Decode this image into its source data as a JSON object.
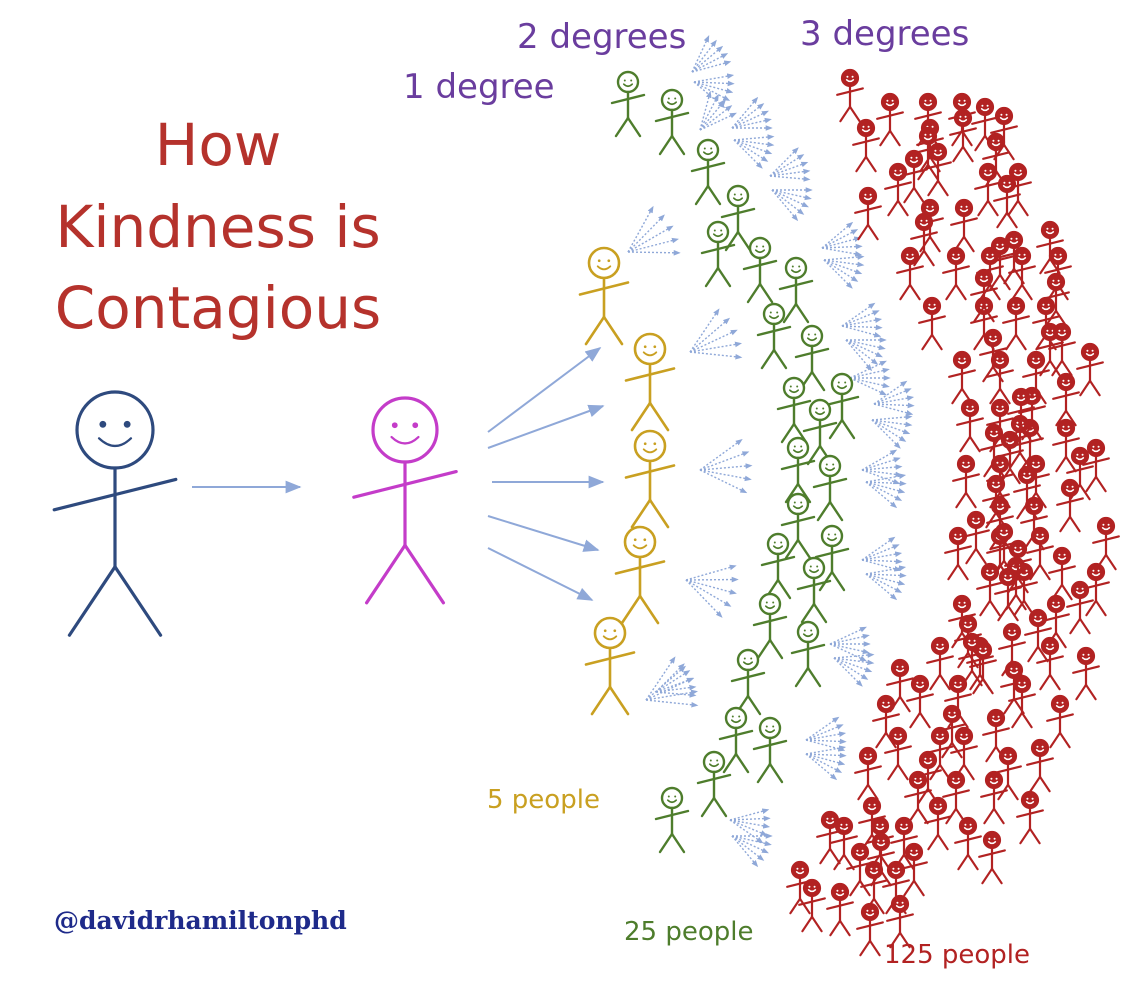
{
  "title": [
    "How",
    "Kindness  is",
    "Contagious"
  ],
  "degrees": [
    "1 degree",
    "2 degrees",
    "3 degrees"
  ],
  "counts": [
    "5 people",
    "25 people",
    "125 people"
  ],
  "credit": "@davidrhamiltonphd",
  "colors": {
    "title": "#b5322c",
    "degree_labels": "#6a3d9e",
    "origin_person": "#2e4a7e",
    "first_person": "#c43cc9",
    "five_people": "#c9a021",
    "twentyfive_people": "#4e7d2c",
    "hundredtwentyfive_people": "#b22222",
    "arrows": "#8fa8d8",
    "credit": "#1e2a8a"
  },
  "figure_counts": {
    "origin": 1,
    "first": 1,
    "five": 5,
    "twentyfive": 25,
    "hundredtwentyfive": 125
  }
}
